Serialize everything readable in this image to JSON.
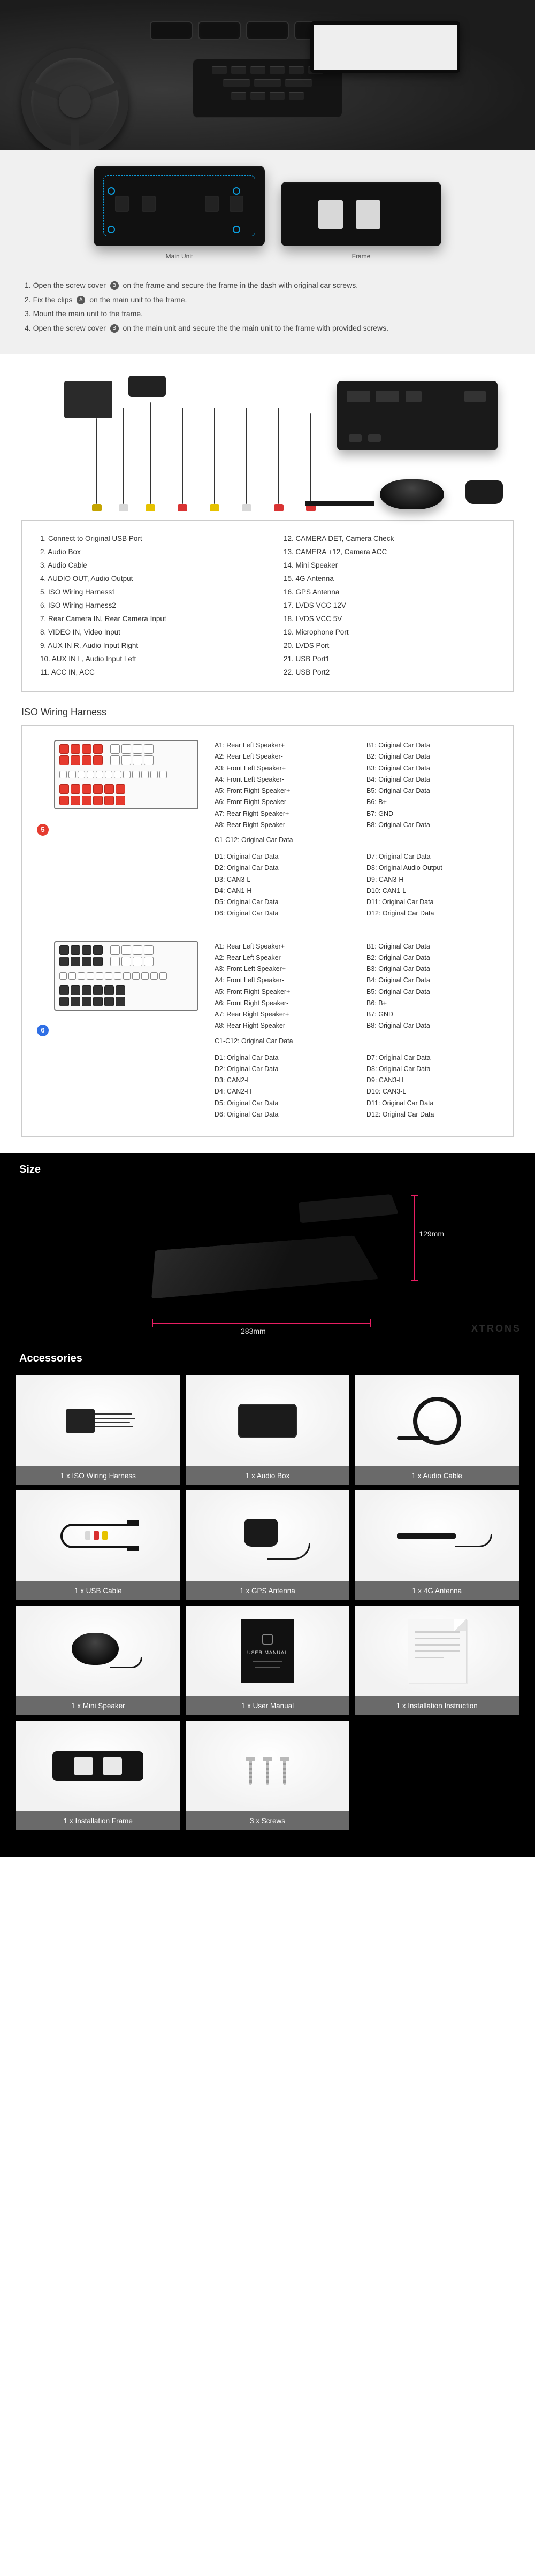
{
  "colors": {
    "accent_blue": "#0b9fe0",
    "dim_pink": "#e5006d",
    "tag5": "#e53b2f",
    "tag6": "#2f6fe5",
    "acc_label_bg": "#6a6a6a"
  },
  "install": {
    "labels": {
      "main": "Main Unit",
      "frame": "Frame"
    },
    "badge_a": "A",
    "badge_b": "B",
    "steps": [
      "1. Open the screw cover {B} on the frame and secure the frame in the dash with original car screws.",
      "2. Fix the clips {A} on the main unit to the frame.",
      "3. Mount the main unit to the frame.",
      "4. Open the screw cover {B} on the main unit and secure the the main unit to the frame with provided screws."
    ]
  },
  "legend": [
    "1. Connect to Original USB Port",
    "2. Audio Box",
    "3. Audio Cable",
    "4. AUDIO OUT, Audio Output",
    "5. ISO Wiring Harness1",
    "6. ISO Wiring Harness2",
    "7. Rear Camera IN, Rear Camera Input",
    "8. VIDEO IN, Video Input",
    "9. AUX IN R, Audio Input Right",
    "10. AUX IN L, Audio Input Left",
    "11. ACC IN, ACC",
    "12. CAMERA DET, Camera Check",
    "13. CAMERA +12, Camera ACC",
    "14. Mini Speaker",
    "15. 4G Antenna",
    "16. GPS Antenna",
    "17. LVDS VCC 12V",
    "18. LVDS VCC 5V",
    "19. Microphone Port",
    "20. LVDS Port",
    "21. USB Port1",
    "22. USB Port2"
  ],
  "iso": {
    "title": "ISO Wiring Harness",
    "groups": [
      {
        "tag": "5",
        "tag_color": "#e53b2f",
        "rows_ab": [
          [
            "A1: Rear Left Speaker+",
            "B1: Original Car Data"
          ],
          [
            "A2: Rear Left Speaker-",
            "B2: Original Car Data"
          ],
          [
            "A3: Front Left Speaker+",
            "B3: Original Car Data"
          ],
          [
            "A4: Front Left Speaker-",
            "B4: Original Car Data"
          ],
          [
            "A5: Front Right Speaker+",
            "B5: Original Car Data"
          ],
          [
            "A6: Front Right Speaker-",
            "B6: B+"
          ],
          [
            "A7: Rear Right Speaker+",
            "B7: GND"
          ],
          [
            "A8: Rear Right Speaker-",
            "B8: Original Car Data"
          ]
        ],
        "c_note": "C1-C12: Original Car Data",
        "rows_d": [
          [
            "D1: Original Car Data",
            "D7: Original Car Data"
          ],
          [
            "D2: Original Car Data",
            "D8: Original Audio Output"
          ],
          [
            "D3: CAN3-L",
            "D9: CAN3-H"
          ],
          [
            "D4: CAN1-H",
            "D10: CAN1-L"
          ],
          [
            "D5: Original Car Data",
            "D11: Original Car Data"
          ],
          [
            "D6: Original Car Data",
            "D12: Original Car Data"
          ]
        ]
      },
      {
        "tag": "6",
        "tag_color": "#2f6fe5",
        "rows_ab": [
          [
            "A1: Rear Left Speaker+",
            "B1: Original Car Data"
          ],
          [
            "A2: Rear Left Speaker-",
            "B2: Original Car Data"
          ],
          [
            "A3: Front Left Speaker+",
            "B3: Original Car Data"
          ],
          [
            "A4: Front Left Speaker-",
            "B4: Original Car Data"
          ],
          [
            "A5: Front Right Speaker+",
            "B5: Original Car Data"
          ],
          [
            "A6: Front Right Speaker-",
            "B6: B+"
          ],
          [
            "A7: Rear Right Speaker+",
            "B7: GND"
          ],
          [
            "A8: Rear Right Speaker-",
            "B8: Original Car Data"
          ]
        ],
        "c_note": "C1-C12: Original Car Data",
        "rows_d": [
          [
            "D1: Original Car Data",
            "D7: Original Car Data"
          ],
          [
            "D2: Original Car Data",
            "D8: Original Car Data"
          ],
          [
            "D3: CAN2-L",
            "D9: CAN3-H"
          ],
          [
            "D4: CAN2-H",
            "D10: CAN3-L"
          ],
          [
            "D5: Original Car Data",
            "D11: Original Car Data"
          ],
          [
            "D6: Original Car Data",
            "D12: Original Car Data"
          ]
        ]
      }
    ]
  },
  "size": {
    "title": "Size",
    "height_mm": "129mm",
    "width_mm": "283mm",
    "watermark": "XTRONS"
  },
  "accessories": {
    "title": "Accessories",
    "items": [
      "1 x ISO Wiring Harness",
      "1 x Audio Box",
      "1 x Audio Cable",
      "1 x USB Cable",
      "1 x GPS Antenna",
      "1 x 4G Antenna",
      "1 x Mini Speaker",
      "1 x User Manual",
      "1 x Installation Instruction",
      "1 x Installation Frame",
      "3 x Screws"
    ]
  }
}
